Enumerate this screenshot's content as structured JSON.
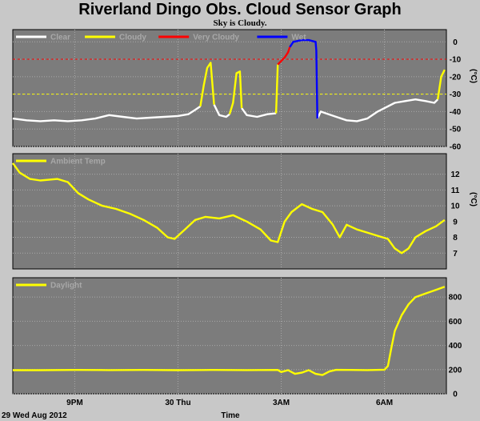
{
  "title": "Riverland Dingo Obs. Cloud Sensor Graph",
  "subtitle": "Sky is Cloudy.",
  "footer": {
    "date_label": "29 Wed Aug 2012",
    "xlabel": "Time"
  },
  "colors": {
    "panel_bg": "#7c7c7c",
    "grid": "#a8a8a8",
    "clear": "#ffffff",
    "cloudy": "#ffff00",
    "very_cloudy": "#ff0000",
    "wet": "#0000ff",
    "ambient": "#ffff00",
    "daylight": "#ffff00",
    "threshold_red": "#ff0000",
    "threshold_yellow": "#ffff00"
  },
  "chart_data": [
    {
      "type": "line",
      "unit": "(°C)",
      "ylim": [
        -60,
        7
      ],
      "yticks": [
        0,
        -10,
        -20,
        -30,
        -40,
        -50,
        -60
      ],
      "x_tick_labels": [
        "9PM",
        "30 Thu",
        "3AM",
        "6AM"
      ],
      "x_tick_hours": [
        21,
        24,
        27,
        30
      ],
      "xlim_hours": [
        19.2,
        31.8
      ],
      "thresholds": [
        {
          "value": -10,
          "color": "#ff0000"
        },
        {
          "value": -30,
          "color": "#ffff00"
        }
      ],
      "legend": [
        "Clear",
        "Cloudy",
        "Very Cloudy",
        "Wet"
      ],
      "series": [
        {
          "name": "Clear",
          "color": "#ffffff",
          "segments": [
            [
              [
                19.2,
                -44
              ],
              [
                19.6,
                -45
              ],
              [
                20.0,
                -45.5
              ],
              [
                20.4,
                -45
              ],
              [
                20.8,
                -45.5
              ],
              [
                21.2,
                -45
              ],
              [
                21.6,
                -44
              ],
              [
                22.0,
                -42
              ],
              [
                22.4,
                -43
              ],
              [
                22.8,
                -44
              ],
              [
                23.2,
                -43.5
              ],
              [
                23.6,
                -43
              ],
              [
                24.0,
                -42.5
              ],
              [
                24.3,
                -41.5
              ],
              [
                24.5,
                -39
              ],
              [
                24.65,
                -37
              ]
            ],
            [
              [
                25.05,
                -36
              ],
              [
                25.2,
                -42
              ],
              [
                25.4,
                -43
              ],
              [
                25.5,
                -41.5
              ]
            ],
            [
              [
                25.85,
                -38
              ],
              [
                26.0,
                -42
              ],
              [
                26.3,
                -43
              ],
              [
                26.6,
                -41.5
              ],
              [
                26.85,
                -41
              ]
            ],
            [
              [
                28.05,
                -44
              ],
              [
                28.15,
                -40
              ],
              [
                28.3,
                -41
              ],
              [
                28.6,
                -43
              ],
              [
                28.9,
                -45
              ],
              [
                29.2,
                -45.5
              ],
              [
                29.5,
                -44
              ],
              [
                29.8,
                -40
              ],
              [
                30.0,
                -38
              ],
              [
                30.3,
                -35
              ],
              [
                30.6,
                -34
              ],
              [
                30.9,
                -33
              ],
              [
                31.2,
                -34
              ],
              [
                31.45,
                -35
              ],
              [
                31.55,
                -33
              ]
            ]
          ]
        },
        {
          "name": "Cloudy",
          "color": "#ffff00",
          "segments": [
            [
              [
                24.65,
                -37
              ],
              [
                24.75,
                -25
              ],
              [
                24.85,
                -15
              ],
              [
                24.95,
                -12
              ],
              [
                25.05,
                -36
              ]
            ],
            [
              [
                25.5,
                -41.5
              ],
              [
                25.6,
                -35
              ],
              [
                25.7,
                -18
              ],
              [
                25.8,
                -17
              ],
              [
                25.85,
                -38
              ]
            ],
            [
              [
                26.85,
                -41
              ],
              [
                26.9,
                -13
              ]
            ],
            [
              [
                31.55,
                -33
              ],
              [
                31.65,
                -20
              ],
              [
                31.75,
                -16
              ]
            ]
          ]
        },
        {
          "name": "Very Cloudy",
          "color": "#ff0000",
          "segments": [
            [
              [
                26.9,
                -13
              ],
              [
                27.0,
                -11
              ],
              [
                27.1,
                -9
              ],
              [
                27.2,
                -6
              ],
              [
                27.25,
                -3
              ]
            ]
          ]
        },
        {
          "name": "Wet",
          "color": "#0000ff",
          "segments": [
            [
              [
                27.25,
                -3
              ],
              [
                27.35,
                0
              ],
              [
                27.6,
                1
              ],
              [
                27.8,
                1
              ],
              [
                28.0,
                0
              ],
              [
                28.02,
                -5
              ],
              [
                28.05,
                -44
              ]
            ]
          ]
        }
      ]
    },
    {
      "type": "line",
      "unit": "(°C)",
      "ylim": [
        6,
        13.3
      ],
      "yticks": [
        12,
        11,
        10,
        9,
        8,
        7
      ],
      "x_tick_hours": [
        21,
        24,
        27,
        30
      ],
      "xlim_hours": [
        19.2,
        31.8
      ],
      "legend": [
        "Ambient Temp"
      ],
      "series": [
        {
          "name": "Ambient Temp",
          "color": "#ffff00",
          "segments": [
            [
              [
                19.2,
                12.7
              ],
              [
                19.4,
                12.1
              ],
              [
                19.7,
                11.7
              ],
              [
                20.0,
                11.6
              ],
              [
                20.5,
                11.7
              ],
              [
                20.8,
                11.5
              ],
              [
                21.1,
                10.8
              ],
              [
                21.4,
                10.4
              ],
              [
                21.8,
                10.0
              ],
              [
                22.2,
                9.8
              ],
              [
                22.6,
                9.5
              ],
              [
                23.0,
                9.1
              ],
              [
                23.4,
                8.6
              ],
              [
                23.7,
                8.0
              ],
              [
                23.9,
                7.9
              ],
              [
                24.2,
                8.5
              ],
              [
                24.5,
                9.1
              ],
              [
                24.8,
                9.3
              ],
              [
                25.2,
                9.2
              ],
              [
                25.6,
                9.4
              ],
              [
                26.0,
                9.0
              ],
              [
                26.4,
                8.5
              ],
              [
                26.7,
                7.8
              ],
              [
                26.9,
                7.7
              ],
              [
                27.1,
                9.0
              ],
              [
                27.3,
                9.6
              ],
              [
                27.6,
                10.1
              ],
              [
                27.9,
                9.8
              ],
              [
                28.2,
                9.6
              ],
              [
                28.5,
                8.8
              ],
              [
                28.7,
                8.0
              ],
              [
                28.9,
                8.8
              ],
              [
                29.2,
                8.5
              ],
              [
                29.5,
                8.3
              ],
              [
                29.8,
                8.1
              ],
              [
                30.1,
                7.9
              ],
              [
                30.3,
                7.3
              ],
              [
                30.5,
                7.0
              ],
              [
                30.7,
                7.3
              ],
              [
                30.9,
                8.0
              ],
              [
                31.2,
                8.4
              ],
              [
                31.5,
                8.7
              ],
              [
                31.75,
                9.1
              ]
            ]
          ]
        }
      ]
    },
    {
      "type": "line",
      "ylim": [
        0,
        960
      ],
      "yticks": [
        800,
        600,
        400,
        200,
        0
      ],
      "x_tick_hours": [
        21,
        24,
        27,
        30
      ],
      "xlim_hours": [
        19.2,
        31.8
      ],
      "legend": [
        "Daylight"
      ],
      "series": [
        {
          "name": "Daylight",
          "color": "#ffff00",
          "segments": [
            [
              [
                19.2,
                195
              ],
              [
                20.0,
                195
              ],
              [
                21.0,
                197
              ],
              [
                22.0,
                196
              ],
              [
                23.0,
                197
              ],
              [
                24.0,
                195
              ],
              [
                25.0,
                197
              ],
              [
                26.0,
                196
              ],
              [
                26.9,
                197
              ],
              [
                27.0,
                180
              ],
              [
                27.2,
                195
              ],
              [
                27.4,
                165
              ],
              [
                27.6,
                175
              ],
              [
                27.8,
                195
              ],
              [
                28.0,
                165
              ],
              [
                28.2,
                155
              ],
              [
                28.4,
                185
              ],
              [
                28.6,
                198
              ],
              [
                29.0,
                197
              ],
              [
                29.5,
                196
              ],
              [
                30.0,
                199
              ],
              [
                30.1,
                230
              ],
              [
                30.2,
                380
              ],
              [
                30.3,
                520
              ],
              [
                30.5,
                650
              ],
              [
                30.7,
                740
              ],
              [
                30.9,
                800
              ],
              [
                31.2,
                830
              ],
              [
                31.5,
                860
              ],
              [
                31.75,
                885
              ]
            ]
          ]
        }
      ]
    }
  ]
}
